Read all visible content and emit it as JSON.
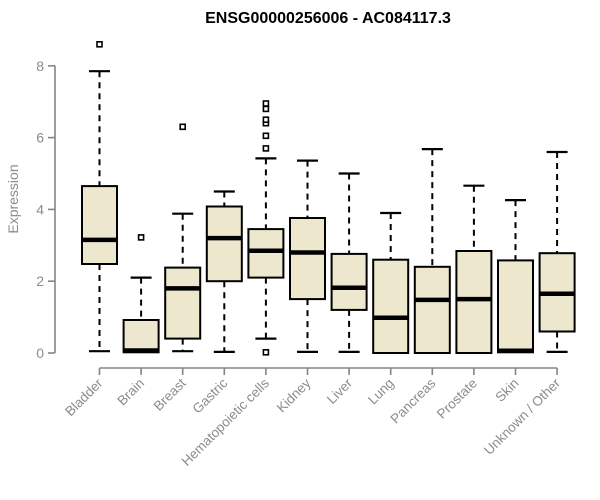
{
  "title": "ENSG00000256006 - AC084117.3",
  "colors": {
    "background": "#ffffff",
    "title": "#000000",
    "box_fill": "#ede8cd",
    "box_border": "#000000",
    "median": "#000000",
    "whisker": "#000000",
    "outlier_stroke": "#000000",
    "axis": "#858585",
    "axis_label": "#8c8c8c"
  },
  "chart_data": {
    "type": "boxplot",
    "title": "ENSG00000256006 - AC084117.3",
    "xlabel": "",
    "ylabel": "Expression",
    "ylim": [
      0,
      8.8
    ],
    "yticks": [
      0,
      2,
      4,
      6,
      8
    ],
    "grid": false,
    "legend": "none",
    "categories": [
      "Bladder",
      "Brain",
      "Breast",
      "Gastric",
      "Hematopoietic cells",
      "Kidney",
      "Liver",
      "Lung",
      "Pancreas",
      "Prostate",
      "Skin",
      "Unknown / Other"
    ],
    "series": [
      {
        "name": "Bladder",
        "low": 0.05,
        "q1": 2.48,
        "median": 3.15,
        "q3": 4.65,
        "high": 7.85,
        "outliers": [
          8.6
        ]
      },
      {
        "name": "Brain",
        "low": 0.02,
        "q1": 0.02,
        "median": 0.07,
        "q3": 0.92,
        "high": 2.1,
        "outliers": [
          3.22
        ]
      },
      {
        "name": "Breast",
        "low": 0.05,
        "q1": 0.4,
        "median": 1.8,
        "q3": 2.38,
        "high": 3.88,
        "outliers": [
          6.3
        ]
      },
      {
        "name": "Gastric",
        "low": 0.03,
        "q1": 2.0,
        "median": 3.2,
        "q3": 4.08,
        "high": 4.5,
        "outliers": []
      },
      {
        "name": "Hematopoietic cells",
        "low": 0.4,
        "q1": 2.1,
        "median": 2.85,
        "q3": 3.45,
        "high": 5.42,
        "outliers": [
          5.7,
          6.05,
          6.4,
          6.5,
          6.8,
          6.95,
          0.02
        ]
      },
      {
        "name": "Kidney",
        "low": 0.03,
        "q1": 1.5,
        "median": 2.8,
        "q3": 3.76,
        "high": 5.36,
        "outliers": []
      },
      {
        "name": "Liver",
        "low": 0.03,
        "q1": 1.2,
        "median": 1.82,
        "q3": 2.76,
        "high": 5.0,
        "outliers": []
      },
      {
        "name": "Lung",
        "low": 0.0,
        "q1": 0.0,
        "median": 0.98,
        "q3": 2.6,
        "high": 3.9,
        "outliers": []
      },
      {
        "name": "Pancreas",
        "low": 0.0,
        "q1": 0.0,
        "median": 1.48,
        "q3": 2.4,
        "high": 5.68,
        "outliers": []
      },
      {
        "name": "Prostate",
        "low": 0.0,
        "q1": 0.0,
        "median": 1.5,
        "q3": 2.84,
        "high": 4.66,
        "outliers": []
      },
      {
        "name": "Skin",
        "low": 0.02,
        "q1": 0.02,
        "median": 0.06,
        "q3": 2.58,
        "high": 4.26,
        "outliers": []
      },
      {
        "name": "Unknown / Other",
        "low": 0.03,
        "q1": 0.6,
        "median": 1.65,
        "q3": 2.78,
        "high": 5.6,
        "outliers": []
      }
    ]
  }
}
